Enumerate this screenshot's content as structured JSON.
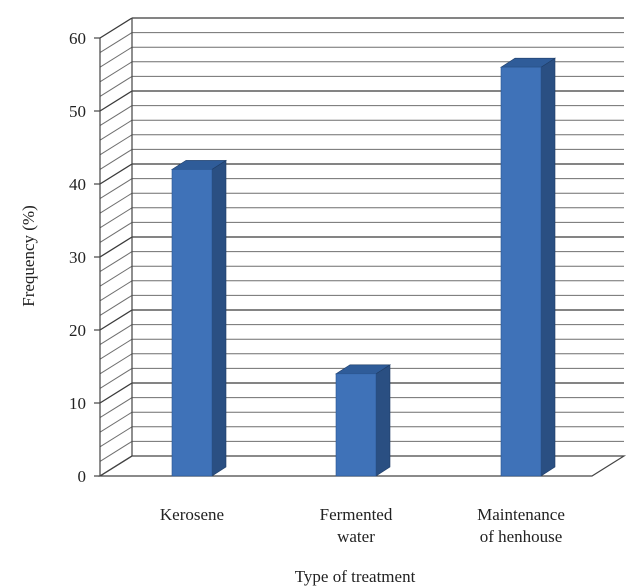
{
  "chart_data": {
    "type": "bar",
    "categories": [
      "Kerosene",
      "Fermented water",
      "Maintenance of henhouse"
    ],
    "category_label_lines": [
      [
        "Kerosene"
      ],
      [
        "Fermented",
        "water"
      ],
      [
        "Maintenance",
        "of henhouse"
      ]
    ],
    "values": [
      42,
      14,
      56
    ],
    "xlabel": "Type of treatment",
    "ylabel": "Frequency (%)",
    "ylim": [
      0,
      60
    ],
    "y_ticks": [
      0,
      10,
      20,
      30,
      40,
      50,
      60
    ],
    "minor_grid_step": 2,
    "grid": true,
    "style_3d": true,
    "colors": {
      "bar_front": "#3f72b8",
      "bar_side": "#2a4f82",
      "bar_top": "#2f5c99"
    }
  }
}
